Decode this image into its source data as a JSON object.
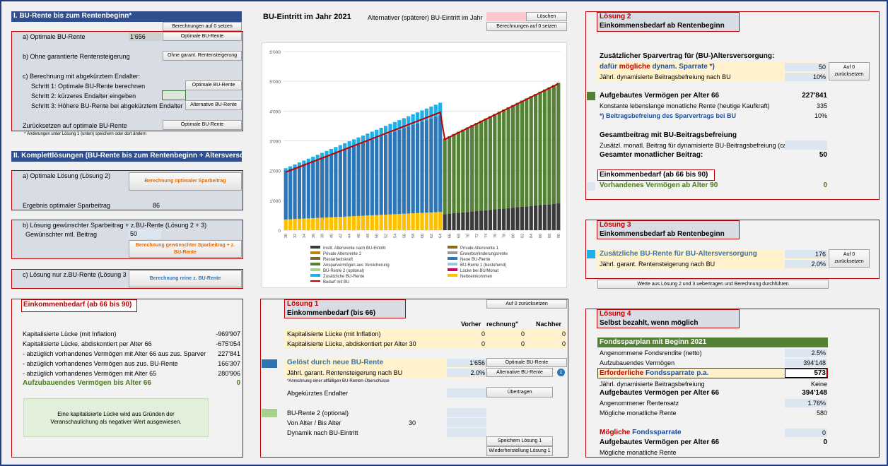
{
  "left": {
    "section1_title": "I. BU-Rente bis zum Rentenbeginn*",
    "btn_reset_calc": "Berechnungen auf 0 setzen",
    "a_label": "a) Optimale BU-Rente",
    "a_value": "1'656",
    "btn_optimal": "Optimale BU-Rente",
    "b_label": "b) Ohne garantierte Rentensteigerung",
    "btn_without": "Ohne garant. Rentensteigerung",
    "c_label": "c) Berechnung mit abgekürztem Endalter:",
    "step1": "Schritt 1: Optimale BU-Rente berechnen",
    "btn_step1": "Optimale BU-Rente",
    "step2": "Schritt 2: kürzeres Endalter eingeben",
    "step3": "Schritt 3: Höhere BU-Rente bei abgekürztem Endalter",
    "btn_step3": "Alternative BU-Rente",
    "reset_label": "Zurücksetzen auf optimale BU-Rente",
    "btn_reset": "Optimale BU-Rente",
    "note": "* Änderungen unter Lösung 1 (unten) speichern oder dort ändern",
    "section2_title": "II. Komplettlösungen (BU-Rente bis zum Rentenbeginn + Altersversorgung)",
    "s2a_label": "a) Optimale Lösung (Lösung 2)",
    "btn_s2a": "Berechnung optimaler Sparbeitrag",
    "s2a_result_label": "Ergebnis optimaler Sparbeitrag",
    "s2a_result_value": "86",
    "s2b_label": "b) Lösung gewünschter Sparbeitrag + z.BU-Rente (Lösung 2 + 3)",
    "s2b_input_label": "Gewünschter mtl. Beitrag",
    "s2b_input_value": "50",
    "btn_s2b": "Berechnung gewünschter Sparbeitrag + z. BU-Rente",
    "s2c_label": "c) Lösung nur z.BU-Rente (Lösung 3",
    "btn_s2c": "Berechnung reine z. BU-Rente",
    "ek_title": "Einkommenbedarf (ab 66 bis 90)",
    "ek_rows": [
      {
        "label": "Kapitalisierte Lücke (mit Inflation)",
        "value": "-969'907"
      },
      {
        "label": "Kapitalisierte Lücke, abdiskontiert per Alter 66",
        "value": "-675'054"
      },
      {
        "label": "- abzüglich vorhandenes Vermögen mit Alter 66 aus zus. Sparver",
        "value": "227'841"
      },
      {
        "label": "- abzüglich vorhandenes Vermögen aus zus. BU-Rente",
        "value": "166'307"
      },
      {
        "label": "- abzüglich vorhandenes Vermögen mit Alter 65",
        "value": "280'906"
      }
    ],
    "ek_total_label": "Aufzubauendes Vermögen bis Alter 66",
    "ek_total_value": "0",
    "ek_note": "Eine kapitalisierte Lücke wird aus Gründen der Veranschaulichung als negativer Wert ausgewiesen."
  },
  "middle": {
    "bu_title": "BU-Eintritt im Jahr 2021",
    "alt_label": "Alternativer (späterer) BU-Eintritt im Jahr",
    "btn_delete": "Löschen",
    "btn_reset_calc": "Berechnungen auf 0 setzen",
    "l1_title": "Lösung 1",
    "l1_sub": "Einkommenbedarf (bis 66)",
    "btn_l1_reset": "Auf 0 zurücksetzen",
    "col_before": "Vorher",
    "col_calc": "rechnung\"",
    "col_after": "Nachher",
    "l1_rows": [
      {
        "label": "Kapitalisierte Lücke (mit Inflation)",
        "v1": "0",
        "v2": "0",
        "v3": "0"
      },
      {
        "label": "Kapitalisierte Lücke, abdiskontiert per Alter 30",
        "v1": "0",
        "v2": "0",
        "v3": "0"
      }
    ],
    "solved_label": "Gelöst durch neue BU-Rente",
    "solved_value": "1'656",
    "btn_opt": "Optimale BU-Rente",
    "increase_label": "Jährl. garant. Rentensteigerung nach BU",
    "increase_value": "2.0%",
    "btn_alt": "Alternative BU-Rente",
    "info_icon": "i",
    "l1_note": "*Anrechnung einer allfälligen BU-Renten-Überschüsse",
    "endalter_label": "Abgekürztes Endalter",
    "btn_transfer": "Übertragen",
    "bu2_label": "BU-Rente 2 (optional)",
    "age_label": "Von Alter / Bis Alter",
    "age_value": "30",
    "dyn_label": "Dynamik nach BU-Eintritt",
    "btn_save": "Speichern Lösung 1",
    "btn_restore": "Wiederherstellung Lösung 1"
  },
  "chart_data": {
    "type": "bar",
    "x": [
      30,
      31,
      32,
      33,
      34,
      35,
      36,
      37,
      38,
      39,
      40,
      41,
      42,
      43,
      44,
      45,
      46,
      47,
      48,
      49,
      50,
      51,
      52,
      53,
      54,
      55,
      56,
      57,
      58,
      59,
      60,
      61,
      62,
      63,
      64,
      65,
      66,
      67,
      68,
      69,
      70,
      71,
      72,
      73,
      74,
      75,
      76,
      77,
      78,
      79,
      80,
      81,
      82,
      83,
      84,
      85,
      86,
      87,
      88,
      89,
      90
    ],
    "x_tick_labels": [
      "30",
      "32",
      "34",
      "36",
      "38",
      "40",
      "42",
      "44",
      "46",
      "48",
      "50",
      "52",
      "54",
      "56",
      "58",
      "60",
      "62",
      "64",
      "66",
      "68",
      "70",
      "72",
      "74",
      "76",
      "78",
      "80",
      "82",
      "84",
      "86",
      "88",
      "90"
    ],
    "y_ticks": [
      "0",
      "1'000",
      "2'000",
      "3'000",
      "4'000",
      "5'000",
      "6'000"
    ],
    "ylim": [
      0,
      6000
    ],
    "legend_entries": [
      {
        "name": "Instit. Altersrente nach BU-Eintritt",
        "color": "#3a3a3a"
      },
      {
        "name": "Private Altersrente 1",
        "color": "#8b6914"
      },
      {
        "name": "Private Altersrente 2",
        "color": "#b8860b"
      },
      {
        "name": "Erwerbsminderungsrente",
        "color": "#999999"
      },
      {
        "name": "Restarbeitskraft",
        "color": "#7a6a3a"
      },
      {
        "name": "Neue BU-Rente",
        "color": "#2e75b6"
      },
      {
        "name": "Ansparvermögen aus Versicherung",
        "color": "#548235"
      },
      {
        "name": "BU-Rente 1 (bestehend)",
        "color": "#9dc3e6"
      },
      {
        "name": "BU-Rente 2 (optional)",
        "color": "#a9d18e"
      },
      {
        "name": "Lücke bei BU/Monat",
        "color": "#cc0066"
      },
      {
        "name": "Zusätzliche BU-Rente",
        "color": "#1fb0e8"
      },
      {
        "name": "Nettoeinkommen",
        "color": "#ffc000"
      },
      {
        "name": "Bedarf mit BU",
        "color": "#c00000"
      }
    ],
    "series": [
      {
        "name": "Nettoeinkommen",
        "x_from": 30,
        "x_to": 64,
        "start": 360,
        "end": 610
      },
      {
        "name": "Neue BU-Rente",
        "x_from": 30,
        "x_to": 64,
        "start": 1650,
        "end": 3250
      },
      {
        "name": "Zusätzliche BU-Rente",
        "x_from": 30,
        "x_to": 64,
        "start": 70,
        "end": 420
      },
      {
        "name": "Instit. Altersrente nach BU-Eintritt",
        "x_from": 65,
        "x_to": 90,
        "start": 540,
        "end": 900
      },
      {
        "name": "Ansparvermögen aus Versicherung",
        "x_from": 65,
        "x_to": 90,
        "start": 2540,
        "end": 4050
      },
      {
        "name": "Bedarf mit BU",
        "type": "line",
        "points": [
          [
            30,
            1950
          ],
          [
            64,
            3960
          ],
          [
            65,
            3050
          ],
          [
            90,
            4920
          ]
        ]
      }
    ]
  },
  "right": {
    "l2_title": "Lösung 2",
    "l2_sub": "Einkommensbedarf ab Rentenbeginn",
    "l2_heading": "Zusätzlicher Sparvertrag für (BU-)Altersversorgung:",
    "l2_rate_pre": "dafür",
    "l2_rate_mid": "mögliche",
    "l2_rate_post": "dynam. Sparrate *)",
    "l2_rate_value": "50",
    "btn_l2_reset": "Auf 0 zurücksetzen",
    "l2_dyn_label": "Jährl. dynamisierte Beitragsbefreiung nach BU",
    "l2_dyn_value": "10%",
    "l2_cap_label": "Aufgebautes Vermögen per Alter 66",
    "l2_cap_value": "227'841",
    "l2_pension_label": "Konstante lebenslange monatliche Rente (heutige Kaufkraft)",
    "l2_pension_value": "335",
    "l2_waiver_label": "*) Beitragsbefreiung des Sparvertrags bei BU",
    "l2_waiver_value": "10%",
    "l2_total_heading": "Gesamtbeitrag mit BU-Beitragsbefreiung",
    "l2_extra_label": "Zusätzl. monatl. Beitrag für dynamisierte BU-Beitragsbefreiung (ca.)",
    "l2_total_label": "Gesamter monatlicher Beitrag:",
    "l2_total_value": "50",
    "l2_ek_title": "Einkommenbedarf (ab 66 bis 90)",
    "l2_avail_label": "Vorhandenes Vermögen ab Alter 90",
    "l2_avail_value": "0",
    "l3_title": "Lösung 3",
    "l3_sub": "Einkommensbedarf ab Rentenbeginn",
    "l3_extra_label": "Zusätzliche BU-Rente für BU-Altersversorgung",
    "l3_extra_value": "176",
    "btn_l3_reset": "Auf 0 zurücksetzen",
    "l3_inc_label": "Jährl. garant. Rentensteigerung nach BU",
    "l3_inc_value": "2.0%",
    "btn_transfer": "Werte aus Lösung 2 und 3 uebertragen und Berechnung durchführen",
    "l4_title": "Lösung 4",
    "l4_sub": "Selbst bezahlt, wenn möglich",
    "l4_plan": "Fondssparplan mit Beginn 2021",
    "l4_return_label": "Angenommene Fondsrendite (netto)",
    "l4_return_value": "2.5%",
    "l4_target_label": "Aufzubauendes Vermögen",
    "l4_target_value": "394'148",
    "l4_req_pre": "Erforderliche",
    "l4_req_post": "Fondssparrate p.a.",
    "l4_req_value": "573",
    "l4_dyn_label": "Jährl. dynamisierte Beitragsbefreiung",
    "l4_dyn_value": "Keine",
    "l4_cap_label": "Aufgebautes Vermögen per Alter 66",
    "l4_cap_value": "394'148",
    "l4_rate_label": "Angenommener Rentensatz",
    "l4_rate_value": "1.76%",
    "l4_pension_label": "Mögliche monatliche Rente",
    "l4_pension_value": "580",
    "l4_poss_pre": "Mögliche",
    "l4_poss_post": "Fondssparrate",
    "l4_poss_value": "0",
    "l4_cap2_label": "Aufgebautes Vermögen per Alter 66",
    "l4_cap2_value": "0",
    "l4_pension2_label": "Mögliche monatliche Rente",
    "l4_pension2_value": ""
  },
  "colors": {
    "accent": "#2f4f8f",
    "border": "#c00000",
    "green": "#548235",
    "blue": "#2e75b6"
  }
}
